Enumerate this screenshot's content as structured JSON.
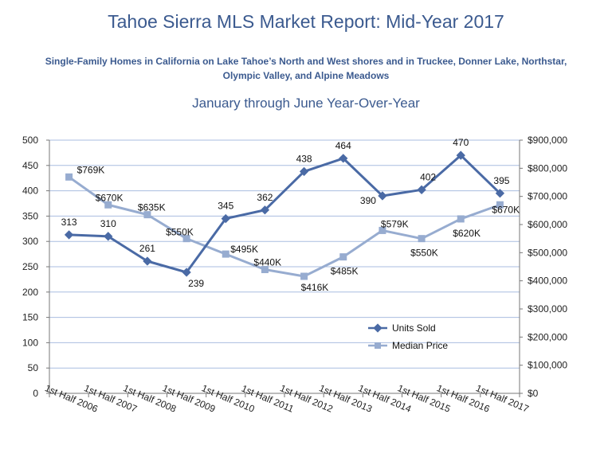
{
  "header": {
    "title": "Tahoe Sierra MLS Market Report: Mid-Year 2017",
    "subtitle": "Single-Family Homes in California on Lake Tahoe’s North and West shores and in Truckee, Donner Lake, Northstar, Olympic Valley, and Alpine Meadows",
    "period": "January through June Year-Over-Year"
  },
  "colors": {
    "units": "#4a6aa5",
    "price": "#97acd0",
    "grid": "#a9bde0",
    "axis": "#777777"
  },
  "chart_data": {
    "type": "line",
    "categories": [
      "1st Half 2006",
      "1st Half 2007",
      "1st Half 2008",
      "1st Half 2009",
      "1st Half 2010",
      "1st Half 2011",
      "1st Half 2012",
      "1st Half 2013",
      "1st Half 2014",
      "1st Half 2015",
      "1st Half 2016",
      "1st Half 2017"
    ],
    "series": [
      {
        "name": "Units Sold",
        "axis": "left",
        "values": [
          313,
          310,
          261,
          239,
          345,
          362,
          438,
          464,
          390,
          402,
          470,
          395
        ],
        "labels": [
          "313",
          "310",
          "261",
          "239",
          "345",
          "362",
          "438",
          "464",
          "390",
          "402",
          "470",
          "395"
        ]
      },
      {
        "name": "Median Price",
        "axis": "right",
        "values": [
          769000,
          670000,
          635000,
          550000,
          495000,
          440000,
          416000,
          485000,
          579000,
          550000,
          620000,
          670000
        ],
        "labels": [
          "$769K",
          "$670K",
          "$635K",
          "$550K",
          "$495K",
          "$440K",
          "$416K",
          "$485K",
          "$579K",
          "$550K",
          "$620K",
          "$670K"
        ]
      }
    ],
    "y_left": {
      "min": 0,
      "max": 500,
      "step": 50,
      "ticks": [
        "0",
        "50",
        "100",
        "150",
        "200",
        "250",
        "300",
        "350",
        "400",
        "450",
        "500"
      ]
    },
    "y_right": {
      "min": 0,
      "max": 900000,
      "step": 100000,
      "ticks": [
        "$0",
        "$100,000",
        "$200,000",
        "$300,000",
        "$400,000",
        "$500,000",
        "$600,000",
        "$700,000",
        "$800,000",
        "$900,000"
      ]
    },
    "grid": true,
    "legend": "lower-right"
  }
}
